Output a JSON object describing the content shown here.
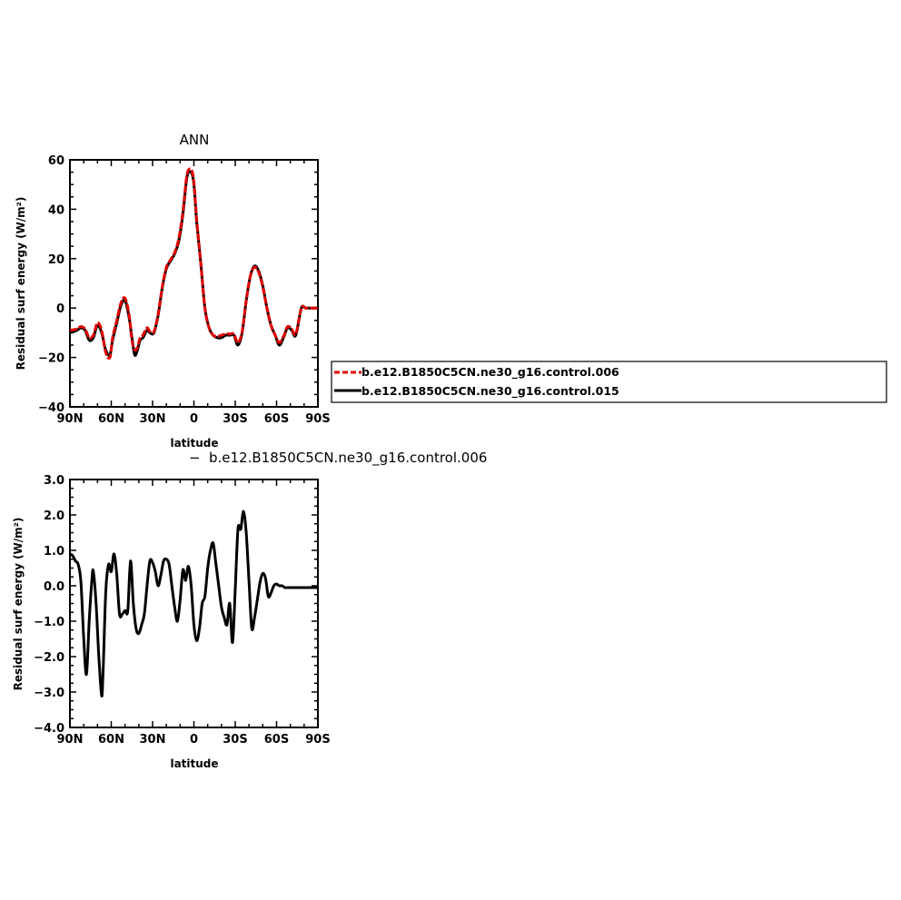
{
  "chart_data": [
    {
      "type": "line",
      "title": "ANN",
      "xlabel": "latitude",
      "ylabel": "Residual surf energy (W/m²)",
      "ylim": [
        -40,
        60
      ],
      "xlim": [
        -90,
        90
      ],
      "x_axis_reversed": true,
      "yticks": [
        -40,
        -20,
        0,
        20,
        40,
        60
      ],
      "ytick_labels": [
        "−40",
        "−20",
        "0",
        "20",
        "40",
        "60"
      ],
      "xticks": [
        90,
        60,
        30,
        0,
        -30,
        -60,
        -90
      ],
      "xtick_labels": [
        "90N",
        "60N",
        "30N",
        "0",
        "30S",
        "60S",
        "90S"
      ],
      "legend_position": "right",
      "series": [
        {
          "name": "b.e12.B1850C5CN.ne30_g16.control.015",
          "color": "#000000",
          "dash": "solid",
          "x": [
            90,
            85,
            82,
            79,
            76,
            73,
            70,
            67,
            64,
            61,
            59,
            56,
            53,
            50,
            47,
            45,
            43,
            41,
            39,
            37,
            34,
            32,
            29,
            26,
            23,
            20,
            17,
            14,
            11,
            8,
            5,
            2,
            0,
            -2,
            -5,
            -8,
            -11,
            -14,
            -17,
            -20,
            -23,
            -26,
            -29,
            -32,
            -35,
            -38,
            -41,
            -44,
            -47,
            -50,
            -53,
            -56,
            -59,
            -62,
            -65,
            -68,
            -71,
            -74,
            -78,
            -81,
            -84,
            -90
          ],
          "values": [
            -10,
            -9,
            -8,
            -9,
            -13,
            -12,
            -7,
            -10,
            -17,
            -19,
            -13,
            -6,
            1,
            3,
            -4,
            -12,
            -19,
            -17,
            -13,
            -12,
            -9,
            -10,
            -10,
            -3,
            8,
            16,
            19,
            22,
            27,
            38,
            53,
            55,
            50,
            35,
            18,
            0,
            -8,
            -11,
            -12,
            -12,
            -11,
            -11,
            -11,
            -15,
            -10,
            3,
            13,
            17,
            15,
            9,
            0,
            -7,
            -11,
            -15,
            -12,
            -8,
            -9,
            -11,
            0,
            0,
            0,
            0
          ]
        },
        {
          "name": "b.e12.B1850C5CN.ne30_g16.control.006",
          "color": "#e00000",
          "dash": "dashed",
          "x": [
            90,
            85,
            82,
            79,
            76,
            73,
            70,
            67,
            64,
            61,
            59,
            56,
            53,
            50,
            47,
            45,
            43,
            41,
            39,
            37,
            34,
            32,
            29,
            26,
            23,
            20,
            17,
            14,
            11,
            8,
            5,
            2,
            0,
            -2,
            -5,
            -8,
            -11,
            -14,
            -17,
            -20,
            -23,
            -26,
            -29,
            -32,
            -35,
            -38,
            -41,
            -44,
            -47,
            -50,
            -53,
            -56,
            -59,
            -62,
            -65,
            -68,
            -71,
            -74,
            -78,
            -81,
            -84,
            -90
          ],
          "values": [
            -9,
            -8.5,
            -7.5,
            -8.5,
            -12,
            -11,
            -6,
            -9,
            -18,
            -20,
            -12,
            -5,
            2,
            4,
            -3,
            -13,
            -17,
            -16,
            -12,
            -11,
            -8,
            -9.5,
            -9.5,
            -2.5,
            8.5,
            16.5,
            19.5,
            22.5,
            28,
            39,
            54,
            56,
            51,
            36,
            18,
            0,
            -8,
            -11,
            -11.5,
            -11,
            -10.5,
            -10.5,
            -10.5,
            -14,
            -9.5,
            3,
            13,
            16.5,
            14.5,
            8.5,
            0,
            -7,
            -11,
            -14,
            -11.5,
            -7.5,
            -8.5,
            -10.5,
            0,
            0,
            0,
            0
          ]
        }
      ],
      "legend_entries": [
        "b.e12.B1850C5CN.ne30_g16.control.006",
        "b.e12.B1850C5CN.ne30_g16.control.015"
      ]
    },
    {
      "type": "line",
      "title": "b.e12.B1850C5CN.ne30_g16.control.006",
      "title_prefix": "−",
      "xlabel": "latitude",
      "ylabel": "Residual surf energy (W/m²)",
      "ylim": [
        -4.0,
        3.0
      ],
      "xlim": [
        -90,
        90
      ],
      "x_axis_reversed": true,
      "yticks": [
        -4,
        -3,
        -2,
        -1,
        0,
        1,
        2,
        3
      ],
      "ytick_labels": [
        "−4.0",
        "−3.0",
        "−2.0",
        "−1.0",
        "0.0",
        "1.0",
        "2.0",
        "3.0"
      ],
      "xticks": [
        90,
        60,
        30,
        0,
        -30,
        -60,
        -90
      ],
      "xtick_labels": [
        "90N",
        "60N",
        "30N",
        "0",
        "30S",
        "60S",
        "90S"
      ],
      "series": [
        {
          "color": "#000000",
          "dash": "solid",
          "x": [
            90,
            88,
            86,
            84,
            82,
            80,
            78,
            76,
            74,
            73,
            71,
            69,
            67,
            66,
            64,
            62,
            60,
            58,
            56,
            54,
            52,
            50,
            48,
            46,
            44,
            42,
            40,
            38,
            36,
            34,
            32,
            30,
            28,
            26,
            24,
            22,
            20,
            18,
            16,
            14,
            12,
            10,
            8,
            6,
            4,
            2,
            0,
            -2,
            -4,
            -6,
            -8,
            -10,
            -12,
            -14,
            -16,
            -18,
            -20,
            -22,
            -24,
            -26,
            -28,
            -30,
            -32,
            -34,
            -36,
            -38,
            -40,
            -42,
            -44,
            -46,
            -48,
            -50,
            -52,
            -54,
            -56,
            -58,
            -60,
            -62,
            -64,
            -66,
            -68,
            -70,
            -72,
            -74,
            -76,
            -78,
            -80,
            -82,
            -84,
            -86,
            -88,
            -90
          ],
          "values": [
            0.9,
            0.85,
            0.7,
            0.6,
            0.1,
            -1.5,
            -2.5,
            -1.0,
            0.2,
            0.4,
            -0.5,
            -2.0,
            -3.1,
            -2.5,
            -0.2,
            0.6,
            0.4,
            0.9,
            0.3,
            -0.8,
            -0.8,
            -0.7,
            -0.7,
            0.7,
            -0.5,
            -1.2,
            -1.35,
            -1.1,
            -0.8,
            0.0,
            0.7,
            0.65,
            0.4,
            0.0,
            0.3,
            0.7,
            0.75,
            0.6,
            0.0,
            -0.6,
            -1.0,
            -0.4,
            0.45,
            0.15,
            0.55,
            0.0,
            -1.1,
            -1.55,
            -1.2,
            -0.5,
            -0.3,
            0.5,
            1.0,
            1.2,
            0.6,
            0.0,
            -0.6,
            -0.9,
            -1.1,
            -0.5,
            -1.6,
            -0.1,
            1.6,
            1.6,
            2.1,
            1.5,
            0.1,
            -1.2,
            -0.9,
            -0.4,
            0.1,
            0.35,
            0.2,
            -0.3,
            -0.2,
            0.0,
            0.05,
            0.0,
            0.0,
            -0.05,
            -0.05,
            -0.05,
            -0.05,
            -0.05,
            -0.05,
            -0.05,
            -0.05,
            -0.05,
            -0.05,
            -0.05,
            -0.05,
            -0.05
          ]
        }
      ]
    }
  ]
}
